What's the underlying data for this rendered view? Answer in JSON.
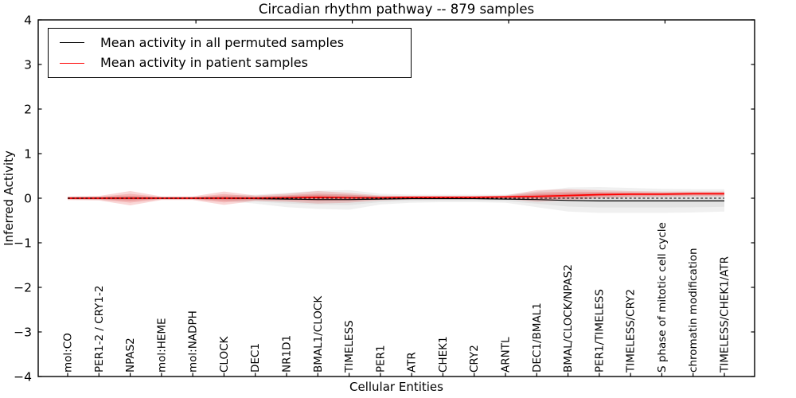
{
  "title": "Circadian rhythm pathway -- 879 samples",
  "xlabel": "Cellular Entities",
  "ylabel": "Inferred Activity",
  "legend": [
    {
      "label": "Mean activity in all permuted samples",
      "color": "#000000"
    },
    {
      "label": "Mean activity in patient samples",
      "color": "#ff0000"
    }
  ],
  "chart_data": {
    "type": "line",
    "title": "Circadian rhythm pathway -- 879 samples",
    "xlabel": "Cellular Entities",
    "ylabel": "Inferred Activity",
    "ylim": [
      -4,
      4
    ],
    "yticks": [
      -4,
      -3,
      -2,
      -1,
      0,
      1,
      2,
      3,
      4
    ],
    "grid": false,
    "legend_position": "upper left",
    "top_ticks_at_indices": [
      4,
      9,
      14,
      19
    ],
    "categories": [
      "mol:CO",
      "PER1-2 / CRY1-2",
      "NPAS2",
      "mol:HEME",
      "mol:NADPH",
      "CLOCK",
      "DEC1",
      "NR1D1",
      "BMAL1/CLOCK",
      "TIMELESS",
      "PER1",
      "ATR",
      "CHEK1",
      "CRY2",
      "ARNTL",
      "DEC1/BMAL1",
      "BMAL/CLOCK/NPAS2",
      "PER1/TIMELESS",
      "TIMELESS/CRY2",
      "S phase of mitotic cell cycle",
      "chromatin modification",
      "TIMELESS/CHEK1/ATR"
    ],
    "series": [
      {
        "name": "Mean activity in all permuted samples",
        "color": "#000000",
        "values": [
          0,
          0,
          0,
          0,
          0,
          0,
          -0.01,
          -0.02,
          -0.03,
          -0.03,
          -0.02,
          -0.01,
          -0.01,
          -0.01,
          -0.02,
          -0.03,
          -0.05,
          -0.06,
          -0.06,
          -0.06,
          -0.06,
          -0.06
        ]
      },
      {
        "name": "Mean activity in patient samples",
        "color": "#ff0000",
        "values": [
          0,
          0,
          0,
          0,
          0,
          0,
          0,
          0.01,
          0.02,
          0.01,
          0.01,
          0.02,
          0.02,
          0.02,
          0.03,
          0.04,
          0.06,
          0.08,
          0.09,
          0.09,
          0.1,
          0.1
        ]
      }
    ],
    "bands": [
      {
        "name": "permuted-samples-range",
        "color": "#8a8a8a",
        "low": [
          -0.03,
          -0.04,
          -0.05,
          -0.03,
          -0.03,
          -0.06,
          -0.12,
          -0.2,
          -0.24,
          -0.26,
          -0.14,
          -0.1,
          -0.09,
          -0.09,
          -0.1,
          -0.2,
          -0.3,
          -0.33,
          -0.33,
          -0.33,
          -0.32,
          -0.3
        ],
        "high": [
          0.03,
          0.04,
          0.05,
          0.03,
          0.03,
          0.06,
          0.08,
          0.12,
          0.17,
          0.18,
          0.1,
          0.08,
          0.08,
          0.08,
          0.08,
          0.15,
          0.24,
          0.25,
          0.23,
          0.21,
          0.2,
          0.2
        ]
      },
      {
        "name": "patient-samples-range",
        "color": "#dd2222",
        "low": [
          -0.04,
          -0.05,
          -0.16,
          -0.04,
          -0.04,
          -0.15,
          -0.06,
          -0.08,
          -0.12,
          -0.1,
          -0.05,
          -0.03,
          -0.02,
          -0.02,
          -0.02,
          -0.08,
          -0.05,
          0.0,
          0.02,
          0.03,
          0.04,
          0.04
        ],
        "high": [
          0.04,
          0.05,
          0.16,
          0.04,
          0.04,
          0.15,
          0.06,
          0.1,
          0.16,
          0.12,
          0.06,
          0.05,
          0.05,
          0.05,
          0.06,
          0.18,
          0.2,
          0.18,
          0.16,
          0.15,
          0.15,
          0.15
        ]
      }
    ],
    "zero_line": {
      "y": 0,
      "style": "dashed",
      "color": "#000000"
    }
  }
}
